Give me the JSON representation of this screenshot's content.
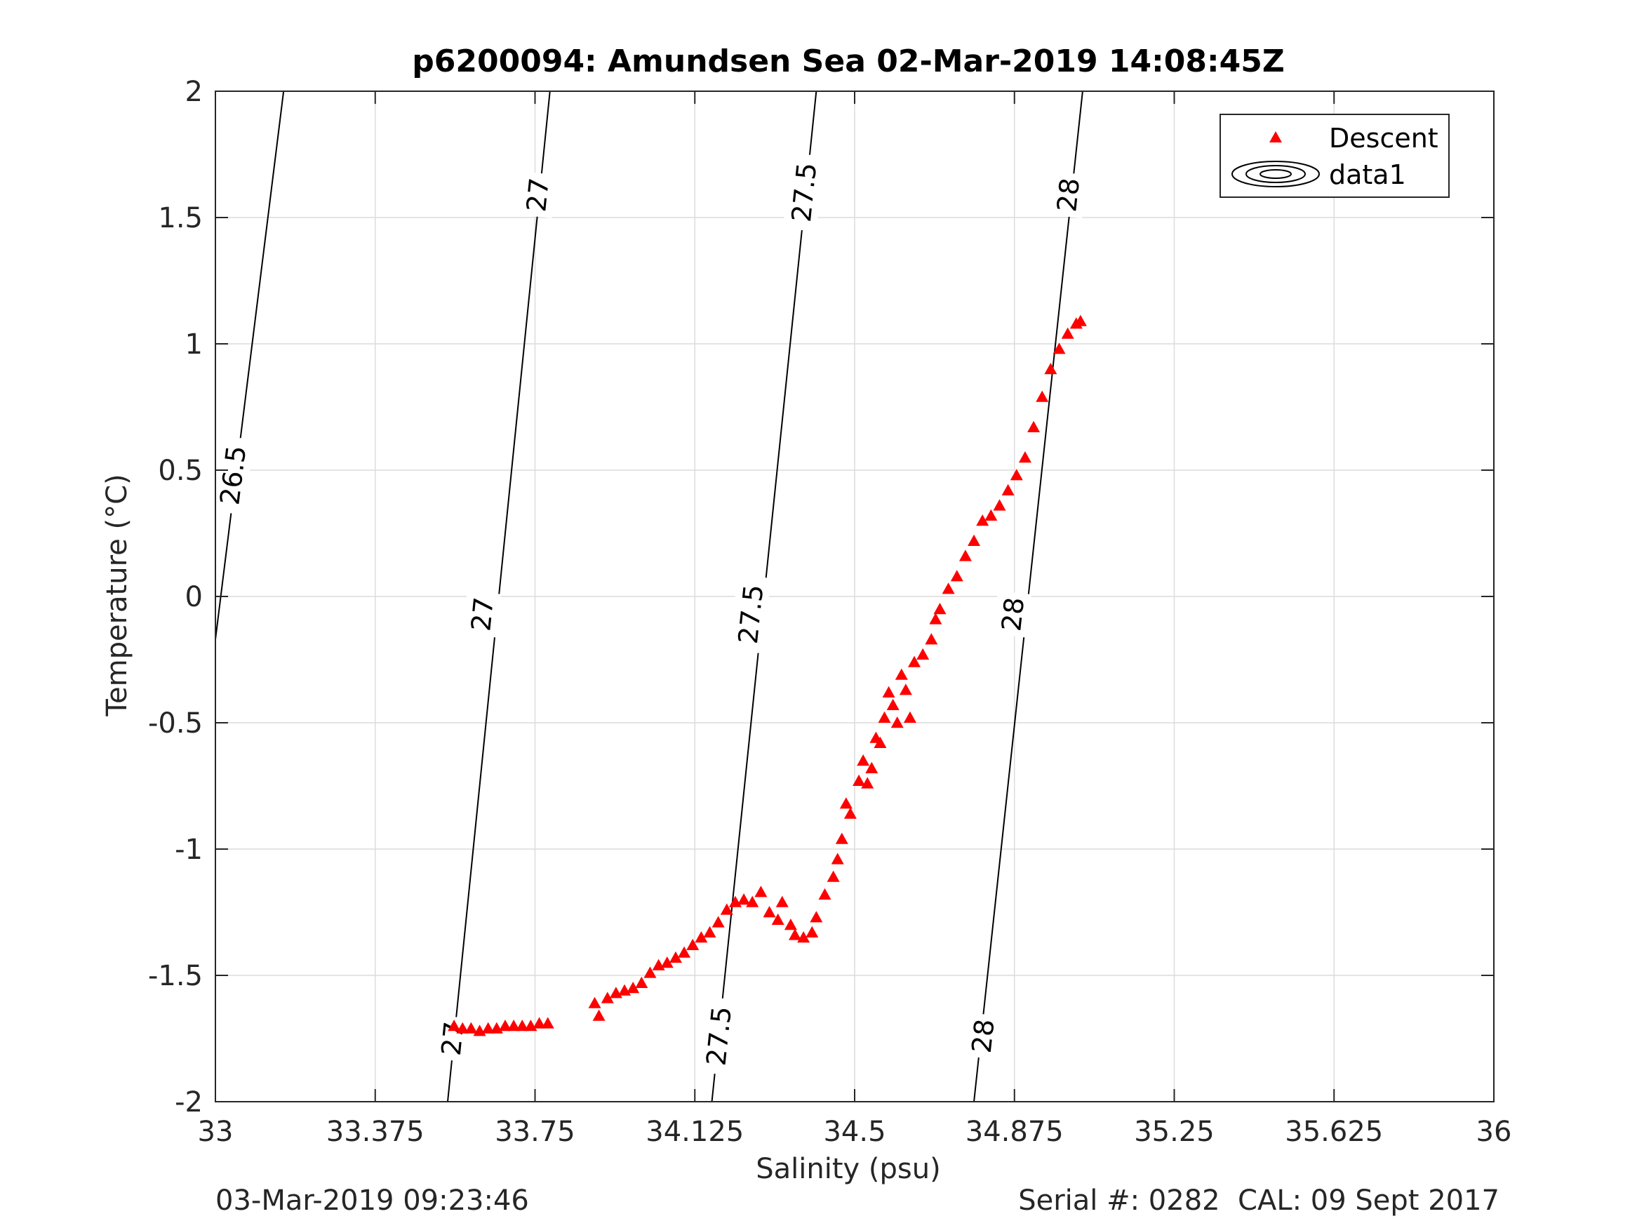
{
  "chart_data": {
    "type": "scatter",
    "title": "p6200094: Amundsen Sea 02-Mar-2019 14:08:45Z",
    "xlabel": "Salinity (psu)",
    "ylabel": "Temperature (°C)",
    "xlim": [
      33,
      36
    ],
    "ylim": [
      -2,
      2
    ],
    "x_ticks": [
      "33",
      "33.375",
      "33.75",
      "34.125",
      "34.5",
      "34.875",
      "35.25",
      "35.625",
      "36"
    ],
    "y_ticks": [
      "2",
      "1.5",
      "1",
      "0.5",
      "0",
      "-0.5",
      "-1",
      "-1.5",
      "-2"
    ],
    "grid": true,
    "legend_position": "top-right",
    "legend": [
      "Descent",
      "data1"
    ],
    "colors": {
      "descent": "#ff0000",
      "contour": "#000000",
      "grid": "#dcdcdc",
      "axis": "#262626"
    },
    "contours": [
      {
        "level": "26.5",
        "points": [
          [
            33.0,
            -0.17
          ],
          [
            33.16,
            2.0
          ]
        ]
      },
      {
        "level": "27",
        "points": [
          [
            33.545,
            -2.0
          ],
          [
            33.785,
            2.0
          ]
        ]
      },
      {
        "level": "27.5",
        "points": [
          [
            34.165,
            -2.0
          ],
          [
            34.41,
            2.0
          ]
        ]
      },
      {
        "level": "28",
        "points": [
          [
            34.78,
            -2.0
          ],
          [
            35.035,
            2.0
          ]
        ]
      }
    ],
    "contour_labels": [
      {
        "text": "26.5",
        "x": 33.04,
        "y": 0.48
      },
      {
        "text": "27",
        "x": 33.755,
        "y": 1.59
      },
      {
        "text": "27",
        "x": 33.625,
        "y": -0.07
      },
      {
        "text": "27",
        "x": 33.555,
        "y": -1.75
      },
      {
        "text": "27.5",
        "x": 34.38,
        "y": 1.6
      },
      {
        "text": "27.5",
        "x": 34.255,
        "y": -0.07
      },
      {
        "text": "27.5",
        "x": 34.18,
        "y": -1.74
      },
      {
        "text": "28",
        "x": 35.0,
        "y": 1.59
      },
      {
        "text": "28",
        "x": 34.87,
        "y": -0.07
      },
      {
        "text": "28",
        "x": 34.8,
        "y": -1.74
      }
    ],
    "series": [
      {
        "name": "Descent",
        "marker": "triangle",
        "points": [
          [
            33.56,
            -1.7
          ],
          [
            33.58,
            -1.71
          ],
          [
            33.6,
            -1.71
          ],
          [
            33.62,
            -1.72
          ],
          [
            33.64,
            -1.71
          ],
          [
            33.66,
            -1.71
          ],
          [
            33.68,
            -1.7
          ],
          [
            33.7,
            -1.7
          ],
          [
            33.72,
            -1.7
          ],
          [
            33.74,
            -1.7
          ],
          [
            33.76,
            -1.69
          ],
          [
            33.78,
            -1.69
          ],
          [
            33.89,
            -1.61
          ],
          [
            33.9,
            -1.66
          ],
          [
            33.92,
            -1.59
          ],
          [
            33.94,
            -1.57
          ],
          [
            33.96,
            -1.56
          ],
          [
            33.98,
            -1.55
          ],
          [
            34.0,
            -1.53
          ],
          [
            34.02,
            -1.49
          ],
          [
            34.04,
            -1.46
          ],
          [
            34.06,
            -1.45
          ],
          [
            34.08,
            -1.43
          ],
          [
            34.1,
            -1.41
          ],
          [
            34.12,
            -1.38
          ],
          [
            34.14,
            -1.35
          ],
          [
            34.16,
            -1.33
          ],
          [
            34.18,
            -1.29
          ],
          [
            34.2,
            -1.24
          ],
          [
            34.22,
            -1.21
          ],
          [
            34.24,
            -1.2
          ],
          [
            34.26,
            -1.21
          ],
          [
            34.28,
            -1.17
          ],
          [
            34.3,
            -1.25
          ],
          [
            34.32,
            -1.28
          ],
          [
            34.33,
            -1.21
          ],
          [
            34.35,
            -1.3
          ],
          [
            34.36,
            -1.34
          ],
          [
            34.38,
            -1.35
          ],
          [
            34.4,
            -1.33
          ],
          [
            34.41,
            -1.27
          ],
          [
            34.43,
            -1.18
          ],
          [
            34.45,
            -1.11
          ],
          [
            34.46,
            -1.04
          ],
          [
            34.47,
            -0.96
          ],
          [
            34.48,
            -0.82
          ],
          [
            34.49,
            -0.86
          ],
          [
            34.51,
            -0.73
          ],
          [
            34.52,
            -0.65
          ],
          [
            34.53,
            -0.74
          ],
          [
            34.54,
            -0.68
          ],
          [
            34.55,
            -0.56
          ],
          [
            34.56,
            -0.58
          ],
          [
            34.57,
            -0.48
          ],
          [
            34.58,
            -0.38
          ],
          [
            34.59,
            -0.43
          ],
          [
            34.6,
            -0.5
          ],
          [
            34.61,
            -0.31
          ],
          [
            34.62,
            -0.37
          ],
          [
            34.63,
            -0.48
          ],
          [
            34.64,
            -0.26
          ],
          [
            34.66,
            -0.23
          ],
          [
            34.68,
            -0.17
          ],
          [
            34.69,
            -0.09
          ],
          [
            34.7,
            -0.05
          ],
          [
            34.72,
            0.03
          ],
          [
            34.74,
            0.08
          ],
          [
            34.76,
            0.16
          ],
          [
            34.78,
            0.22
          ],
          [
            34.8,
            0.3
          ],
          [
            34.82,
            0.32
          ],
          [
            34.84,
            0.36
          ],
          [
            34.86,
            0.42
          ],
          [
            34.88,
            0.48
          ],
          [
            34.9,
            0.55
          ],
          [
            34.92,
            0.67
          ],
          [
            34.94,
            0.79
          ],
          [
            34.96,
            0.9
          ],
          [
            34.98,
            0.98
          ],
          [
            35.0,
            1.04
          ],
          [
            35.02,
            1.08
          ],
          [
            35.03,
            1.09
          ]
        ]
      }
    ]
  },
  "footer": {
    "left": "03-Mar-2019 09:23:46",
    "right": "Serial #: 0282  CAL: 09 Sept 2017"
  }
}
